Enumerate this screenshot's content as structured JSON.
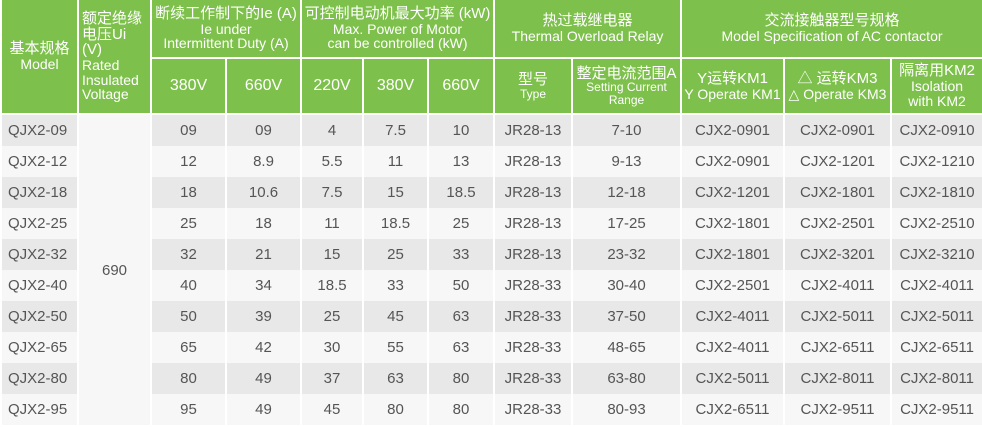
{
  "header": {
    "model": {
      "cn": "基本规格",
      "en": "Model"
    },
    "voltage": {
      "cn": "额定绝缘电压Ui (V)",
      "en": "Rated Insulated Voltage"
    },
    "current": {
      "cn": "断续工作制下的Ie (A)",
      "en1": "Ie under",
      "en2": "Intermittent Duty (A)",
      "sub": [
        "380V",
        "660V"
      ]
    },
    "power": {
      "cn": "可控制电动机最大功率 (kW)",
      "en1": "Max. Power of Motor",
      "en2": "can be controlled (kW)",
      "sub": [
        "220V",
        "380V",
        "660V"
      ]
    },
    "relay": {
      "cn": "热过载继电器",
      "en": "Thermal Overload Relay",
      "type_cn": "型号",
      "type_en": "Type",
      "range_cn": "整定电流范围A",
      "range_en1": "Setting Current",
      "range_en2": "Range"
    },
    "contactor": {
      "cn": "交流接触器型号规格",
      "en": "Model Specification of AC contactor",
      "km1_cn": "Y运转KM1",
      "km1_en": "Y Operate KM1",
      "km3_cn": "△ 运转KM3",
      "km3_en": "△ Operate KM3",
      "km2_cn": "隔离用KM2",
      "km2_en1": "Isolation",
      "km2_en2": "with KM2"
    }
  },
  "voltage_value": "690",
  "rows": [
    [
      "QJX2-09",
      "09",
      "09",
      "4",
      "7.5",
      "10",
      "JR28-13",
      "7-10",
      "CJX2-0901",
      "CJX2-0901",
      "CJX2-0910"
    ],
    [
      "QJX2-12",
      "12",
      "8.9",
      "5.5",
      "11",
      "13",
      "JR28-13",
      "9-13",
      "CJX2-0901",
      "CJX2-1201",
      "CJX2-1210"
    ],
    [
      "QJX2-18",
      "18",
      "10.6",
      "7.5",
      "15",
      "18.5",
      "JR28-13",
      "12-18",
      "CJX2-1201",
      "CJX2-1801",
      "CJX2-1810"
    ],
    [
      "QJX2-25",
      "25",
      "18",
      "11",
      "18.5",
      "25",
      "JR28-13",
      "17-25",
      "CJX2-1801",
      "CJX2-2501",
      "CJX2-2510"
    ],
    [
      "QJX2-32",
      "32",
      "21",
      "15",
      "25",
      "33",
      "JR28-13",
      "23-32",
      "CJX2-1801",
      "CJX2-3201",
      "CJX2-3210"
    ],
    [
      "QJX2-40",
      "40",
      "34",
      "18.5",
      "33",
      "50",
      "JR28-33",
      "30-40",
      "CJX2-2501",
      "CJX2-4011",
      "CJX2-4011"
    ],
    [
      "QJX2-50",
      "50",
      "39",
      "25",
      "45",
      "63",
      "JR28-33",
      "37-50",
      "CJX2-4011",
      "CJX2-5011",
      "CJX2-5011"
    ],
    [
      "QJX2-65",
      "65",
      "42",
      "30",
      "55",
      "63",
      "JR28-33",
      "48-65",
      "CJX2-4011",
      "CJX2-6511",
      "CJX2-6511"
    ],
    [
      "QJX2-80",
      "80",
      "49",
      "37",
      "63",
      "80",
      "JR28-33",
      "63-80",
      "CJX2-5011",
      "CJX2-8011",
      "CJX2-8011"
    ],
    [
      "QJX2-95",
      "95",
      "49",
      "45",
      "80",
      "80",
      "JR28-33",
      "80-93",
      "CJX2-6511",
      "CJX2-9511",
      "CJX2-9511"
    ]
  ],
  "colors": {
    "header": "#7dc04b",
    "row_dark": "#e8e8e8",
    "row_light": "#f7f7f7"
  }
}
